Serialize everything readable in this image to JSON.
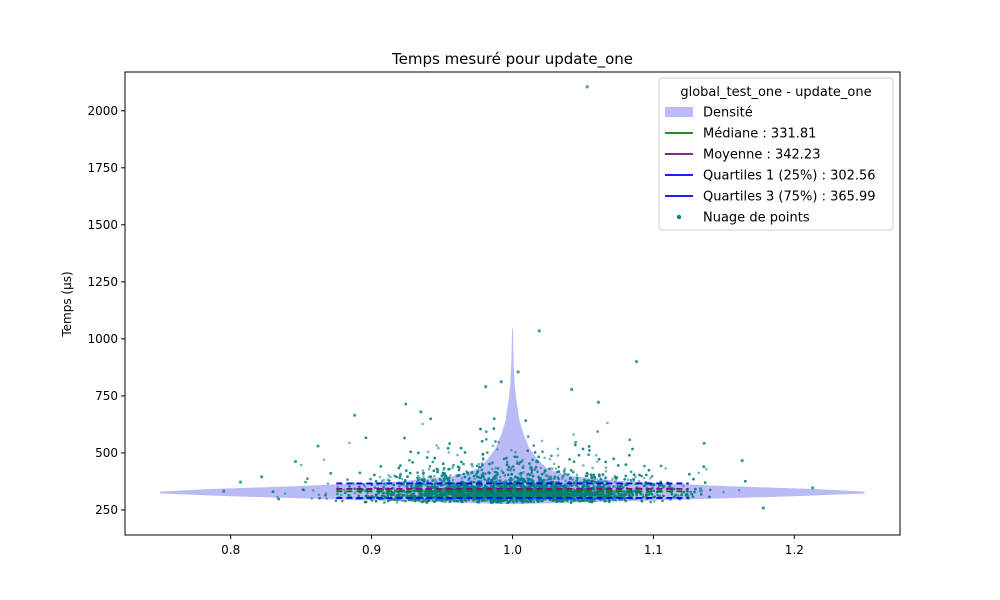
{
  "chart_data": {
    "type": "violin",
    "title": "Temps mesuré pour update_one",
    "ylabel": "Temps (µs)",
    "xlabel": "",
    "xlim": [
      0.725,
      1.275
    ],
    "ylim": [
      140,
      2170
    ],
    "x_ticks": [
      {
        "value": 0.8,
        "label": "0.8"
      },
      {
        "value": 0.9,
        "label": "0.9"
      },
      {
        "value": 1.0,
        "label": "1.0"
      },
      {
        "value": 1.1,
        "label": "1.1"
      },
      {
        "value": 1.2,
        "label": "1.2"
      }
    ],
    "y_ticks": [
      {
        "value": 250,
        "label": "250"
      },
      {
        "value": 500,
        "label": "500"
      },
      {
        "value": 750,
        "label": "750"
      },
      {
        "value": 1000,
        "label": "1000"
      },
      {
        "value": 1250,
        "label": "1250"
      },
      {
        "value": 1500,
        "label": "1500"
      },
      {
        "value": 1750,
        "label": "1750"
      },
      {
        "value": 2000,
        "label": "2000"
      }
    ],
    "grid": false,
    "legend": {
      "title": "global_test_one - update_one",
      "position": "top-right",
      "entries": [
        {
          "label": "Densité",
          "kind": "patch",
          "color": "#b3b3f5"
        },
        {
          "label": "Médiane : 331.81",
          "kind": "line",
          "color": "#008000"
        },
        {
          "label": "Moyenne : 342.23",
          "kind": "line",
          "color": "#800080"
        },
        {
          "label": "Quartiles 1 (25%) : 302.56",
          "kind": "line",
          "color": "#0000ff"
        },
        {
          "label": "Quartiles 3 (75%) : 365.99",
          "kind": "line",
          "color": "#0000ff"
        },
        {
          "label": "Nuage de points",
          "kind": "marker",
          "color": "#008080"
        }
      ]
    },
    "density": {
      "center": 1.0,
      "color": "#b3b3f5",
      "profile": [
        {
          "y": 275,
          "half_width": 0.0
        },
        {
          "y": 295,
          "half_width": 0.12
        },
        {
          "y": 310,
          "half_width": 0.2
        },
        {
          "y": 322,
          "half_width": 0.25
        },
        {
          "y": 330,
          "half_width": 0.25
        },
        {
          "y": 340,
          "half_width": 0.22
        },
        {
          "y": 355,
          "half_width": 0.15
        },
        {
          "y": 375,
          "half_width": 0.08
        },
        {
          "y": 400,
          "half_width": 0.04
        },
        {
          "y": 430,
          "half_width": 0.025
        },
        {
          "y": 470,
          "half_width": 0.018
        },
        {
          "y": 520,
          "half_width": 0.012
        },
        {
          "y": 580,
          "half_width": 0.008
        },
        {
          "y": 640,
          "half_width": 0.005
        },
        {
          "y": 720,
          "half_width": 0.003
        },
        {
          "y": 800,
          "half_width": 0.0015
        },
        {
          "y": 900,
          "half_width": 0.0008
        },
        {
          "y": 1040,
          "half_width": 0.0003
        },
        {
          "y": 1050,
          "half_width": 0.0
        }
      ]
    },
    "stats": {
      "median": 331.81,
      "mean": 342.23,
      "q1": 302.56,
      "q3": 365.99,
      "x_range": [
        0.875,
        1.125
      ],
      "colors": {
        "median": "#008000",
        "mean": "#800080",
        "quartile": "#0000ff"
      }
    },
    "scatter": {
      "color": "#008080",
      "opacity": 0.55,
      "center_x": 1.0,
      "spread_x": 0.05,
      "mode_y": 310,
      "approx_count": 6000,
      "outliers": [
        {
          "x": 1.053,
          "y": 2105
        },
        {
          "x": 1.019,
          "y": 1035
        },
        {
          "x": 1.088,
          "y": 900
        },
        {
          "x": 1.004,
          "y": 855
        },
        {
          "x": 0.992,
          "y": 812
        },
        {
          "x": 1.042,
          "y": 778
        },
        {
          "x": 0.981,
          "y": 790
        },
        {
          "x": 1.061,
          "y": 722
        },
        {
          "x": 0.935,
          "y": 680
        },
        {
          "x": 0.888,
          "y": 665
        },
        {
          "x": 0.862,
          "y": 530
        },
        {
          "x": 1.136,
          "y": 542
        },
        {
          "x": 1.163,
          "y": 466
        },
        {
          "x": 1.213,
          "y": 347
        },
        {
          "x": 1.178,
          "y": 258
        },
        {
          "x": 0.822,
          "y": 395
        },
        {
          "x": 0.807,
          "y": 372
        },
        {
          "x": 0.846,
          "y": 462
        },
        {
          "x": 0.795,
          "y": 332
        }
      ]
    }
  }
}
